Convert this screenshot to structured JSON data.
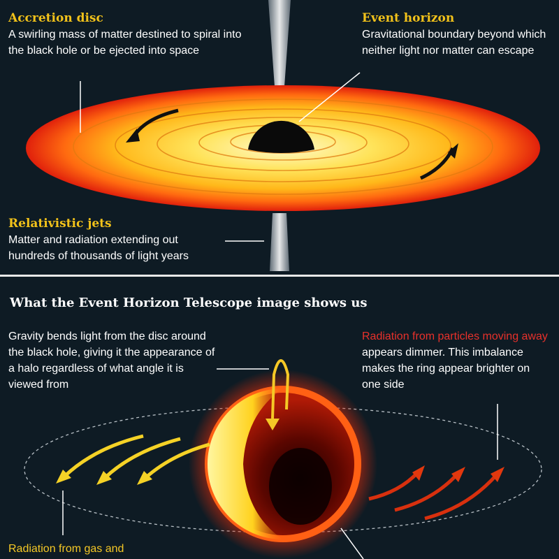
{
  "top": {
    "accretion": {
      "title": "Accretion disc",
      "text": "A swirling mass of matter destined to spiral into the black hole or be ejected into space"
    },
    "event_horizon": {
      "title": "Event horizon",
      "text": "Gravitational boundary beyond which neither light nor matter can escape"
    },
    "jets": {
      "title": "Relativistic jets",
      "text": "Matter and radiation extending out hundreds of thousands of light years"
    }
  },
  "bottom": {
    "title": "What the Event Horizon Telescope image shows us",
    "gravity_text": "Gravity bends light from the disc around the black hole, giving it the appearance of a halo regardless of what angle it is viewed from",
    "away_highlight": "Radiation from particles moving away",
    "away_rest": " appears dimmer. This imbalance makes the ring appear brighter on one side",
    "toward_text": "Radiation from gas and"
  },
  "colors": {
    "background": "#0e1b24",
    "accent_yellow": "#f2c21a",
    "accent_red": "#e8312b"
  }
}
